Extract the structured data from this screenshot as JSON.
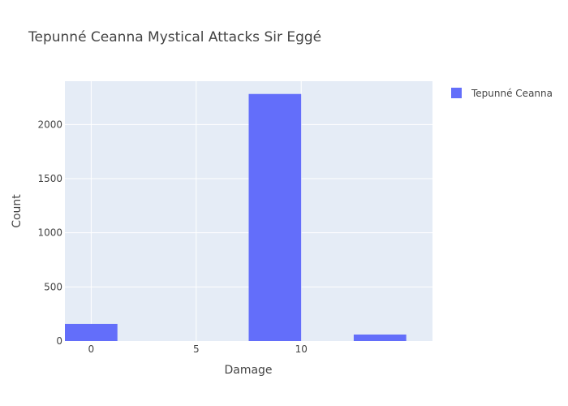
{
  "chart_data": {
    "type": "bar",
    "title": "Tepunné Ceanna Mystical Attacks Sir Eggé",
    "xlabel": "Damage",
    "ylabel": "Count",
    "bin_width": 2.5,
    "series": [
      {
        "name": "Tepunné Ceanna",
        "color": "#636efa",
        "bins": [
          {
            "start": -1.25,
            "end": 1.25,
            "value": 158
          },
          {
            "start": 7.5,
            "end": 10.0,
            "value": 2282
          },
          {
            "start": 12.5,
            "end": 15.0,
            "value": 60
          }
        ]
      }
    ],
    "xlim": [
      -1.25,
      16.25
    ],
    "ylim": [
      0,
      2400
    ],
    "xticks": [
      0,
      5,
      10
    ],
    "yticks": [
      0,
      500,
      1000,
      1500,
      2000
    ],
    "grid": true,
    "legend_position": "top-right"
  }
}
